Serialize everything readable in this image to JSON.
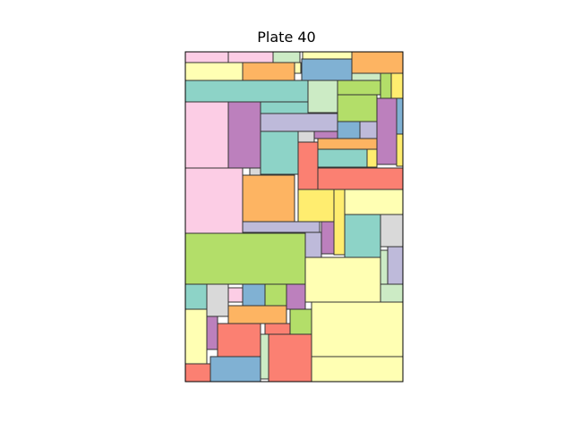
{
  "title": "Plate 40",
  "palette": {
    "pink": "#fccde5",
    "yellow": "#ffffb3",
    "lightgreen": "#ccebc5",
    "blue": "#80b1d3",
    "orange": "#fdb462",
    "teal": "#8dd3c7",
    "lime": "#b3de69",
    "purple": "#bc80bd",
    "lavender": "#bebada",
    "red": "#fb8072",
    "gray": "#d9d9d9",
    "gold": "#ffed6f"
  },
  "edge_color": "#333333"
}
